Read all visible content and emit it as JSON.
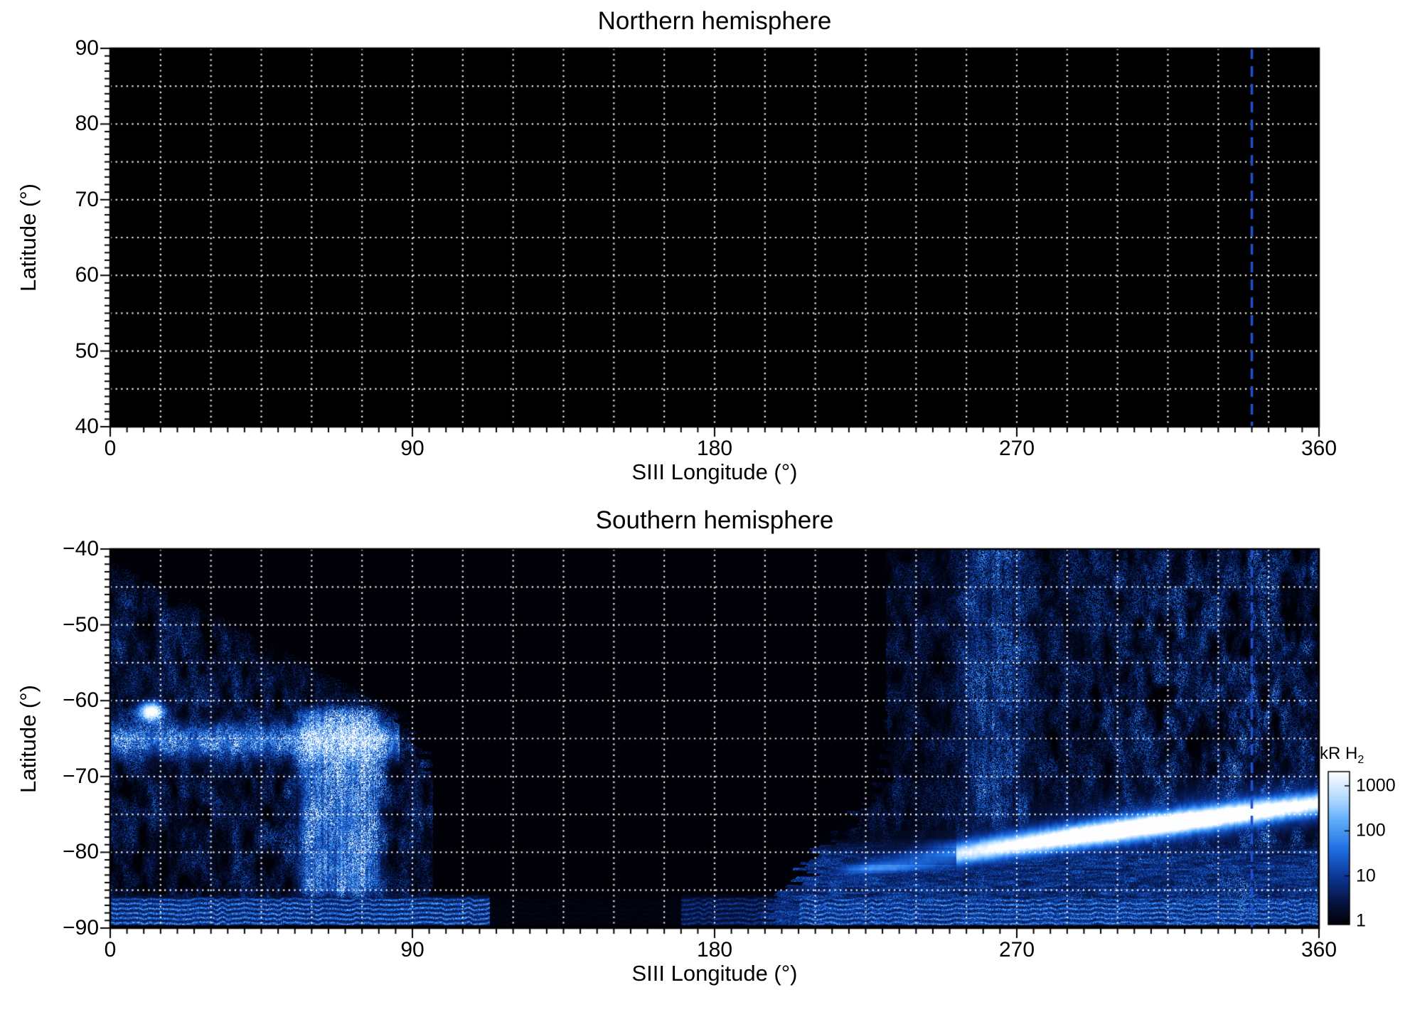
{
  "figure": {
    "background": "#ffffff",
    "text_color": "#000000",
    "marker_line": {
      "longitude": 340,
      "color": "#2050d0",
      "style": "dashed",
      "width": 3.5
    }
  },
  "panels": [
    {
      "title": "Northern hemisphere",
      "xlabel": "SIII Longitude (°)",
      "ylabel": "Latitude (°)",
      "xlim": [
        0,
        360
      ],
      "ylim": [
        40,
        90
      ],
      "xticks": [
        0,
        90,
        180,
        270,
        360
      ],
      "yticks": [
        90,
        80,
        70,
        60,
        50,
        40
      ],
      "x_minor_step": 5,
      "y_minor_step": 1,
      "grid": {
        "x_step": 15,
        "y_step": 5,
        "color": "#ffffff",
        "style": "dotted"
      },
      "content": "no emission (uniform black, below 1 kR)"
    },
    {
      "title": "Southern hemisphere",
      "xlabel": "SIII Longitude (°)",
      "ylabel": "Latitude (°)",
      "xlim": [
        0,
        360
      ],
      "ylim": [
        -90,
        -40
      ],
      "xticks": [
        0,
        90,
        180,
        270,
        360
      ],
      "yticks": [
        -40,
        -50,
        -60,
        -70,
        -80,
        -90
      ],
      "x_minor_step": 5,
      "y_minor_step": 1,
      "grid": {
        "x_step": 15,
        "y_step": 5,
        "color": "#ffffff",
        "style": "dotted"
      },
      "content": "auroral H2 emission map"
    }
  ],
  "colorbar": {
    "label": "kR H",
    "label_sub": "2",
    "scale": "log",
    "tick_values": [
      1000,
      100,
      10,
      1
    ],
    "range": [
      1,
      1000
    ],
    "colormap_stops": [
      "#000006",
      "#061442",
      "#0c3898",
      "#2070e4",
      "#60acfa",
      "#aed8ff",
      "#ffffff"
    ]
  },
  "chart_data": {
    "type": "heatmap",
    "xlabel": "SIII Longitude (°)",
    "ylabel": "Latitude (°)",
    "units": "kR H2",
    "color_scale": {
      "type": "log",
      "min": 1,
      "max": 1000,
      "colormap": "black-blue-white"
    },
    "marker_longitude": 340,
    "panels": [
      {
        "title": "Northern hemisphere",
        "x_range": [
          0,
          360
        ],
        "y_range": [
          40,
          90
        ],
        "features": []
      },
      {
        "title": "Southern hemisphere",
        "x_range": [
          0,
          360
        ],
        "y_range": [
          -90,
          -40
        ],
        "features": [
          {
            "name": "left_wedge",
            "lon": [
              0,
              96
            ],
            "upper_lat_at_lon0": -42.5,
            "upper_lat_slope_deg_per_deg": -0.23,
            "right_edge_lat_knee": -61,
            "right_edge_lon_at_knee": 85,
            "right_edge_slope": 1.45,
            "typical_kR": 20
          },
          {
            "name": "left_band",
            "lat_center": -65.3,
            "lat_sigma": 2.3,
            "lon_max": 86,
            "peak_kR": 250
          },
          {
            "name": "left_spot",
            "lon": 12,
            "lat": -61.4,
            "peak_kR": 800
          },
          {
            "name": "left_column",
            "lon_center": 68.5,
            "lon_halfwidth": 12.5,
            "lat_top": -60,
            "lat_bottom": -87,
            "peak_kR": 150
          },
          {
            "name": "right_field",
            "lon_start": 231,
            "boundary_knee_lat": -70,
            "boundary_slope": 1.9,
            "typical_kR": 40
          },
          {
            "name": "right_column",
            "lon_center": 263,
            "lon_halfwidth": 11,
            "peak_kR": 120
          },
          {
            "name": "main_arc",
            "lon_start": 205,
            "lon_end": 360,
            "lat_start": -84,
            "lat_end": -73.5,
            "lat_sigma": 1.5,
            "peak_lon": 312,
            "peak_kR": 1000
          },
          {
            "name": "bottom_bands",
            "lat_top": -85.3,
            "lat_bottom": -89.5,
            "gap_lon": [
              113,
              170
            ],
            "peak_kR": 150
          }
        ]
      }
    ]
  }
}
